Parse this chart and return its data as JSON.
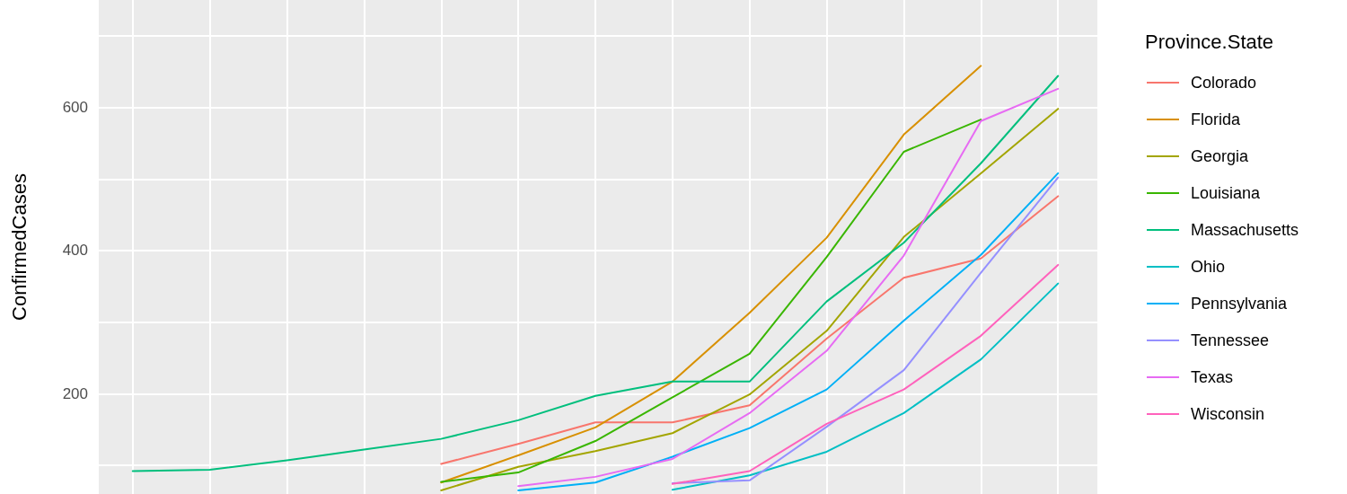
{
  "chart_data": {
    "type": "line",
    "ylabel": "ConfirmedCases",
    "legend_title": "Province.State",
    "categories": [
      null,
      null,
      null,
      null,
      null,
      null,
      null,
      null,
      null,
      null,
      null,
      null,
      null
    ],
    "ylim": [
      60,
      750
    ],
    "yticks": [
      {
        "value": 100,
        "label": null
      },
      200,
      {
        "value": 300,
        "label": null
      },
      400,
      {
        "value": 500,
        "label": null
      },
      600,
      {
        "value": 700,
        "label": null
      }
    ],
    "grid": true,
    "legend": "right",
    "marker": "none",
    "line_style": "solid",
    "series": [
      {
        "name": "Colorado",
        "color": "#f8766d",
        "values": [
          null,
          null,
          null,
          null,
          102,
          130,
          160,
          160,
          184,
          277,
          362,
          389,
          476
        ]
      },
      {
        "name": "Florida",
        "color": "#d89000",
        "values": [
          null,
          null,
          null,
          null,
          76,
          114,
          153,
          217,
          313,
          418,
          562,
          658,
          null
        ]
      },
      {
        "name": "Georgia",
        "color": "#a3a500",
        "values": [
          null,
          null,
          null,
          null,
          65,
          98,
          120,
          145,
          199,
          288,
          419,
          508,
          598
        ]
      },
      {
        "name": "Louisiana",
        "color": "#39b600",
        "values": [
          null,
          null,
          null,
          null,
          77,
          90,
          134,
          195,
          256,
          391,
          538,
          583,
          null
        ]
      },
      {
        "name": "Massachusetts",
        "color": "#00bf7d",
        "values": [
          92,
          94,
          107,
          122,
          137,
          163,
          197,
          217,
          217,
          329,
          411,
          522,
          644
        ]
      },
      {
        "name": "Ohio",
        "color": "#00bfc4",
        "values": [
          null,
          null,
          null,
          null,
          null,
          null,
          null,
          66,
          86,
          119,
          173,
          248,
          354
        ]
      },
      {
        "name": "Pennsylvania",
        "color": "#00b0f6",
        "values": [
          null,
          null,
          null,
          null,
          null,
          65,
          76,
          112,
          152,
          206,
          302,
          394,
          508
        ]
      },
      {
        "name": "Tennessee",
        "color": "#9590ff",
        "values": [
          null,
          null,
          null,
          null,
          null,
          null,
          null,
          75,
          79,
          154,
          233,
          369,
          502
        ]
      },
      {
        "name": "Texas",
        "color": "#e76bf3",
        "values": [
          null,
          null,
          null,
          null,
          null,
          71,
          84,
          109,
          173,
          260,
          393,
          581,
          626
        ]
      },
      {
        "name": "Wisconsin",
        "color": "#ff62bc",
        "values": [
          null,
          null,
          null,
          null,
          null,
          null,
          null,
          74,
          92,
          158,
          206,
          281,
          380
        ]
      }
    ]
  }
}
